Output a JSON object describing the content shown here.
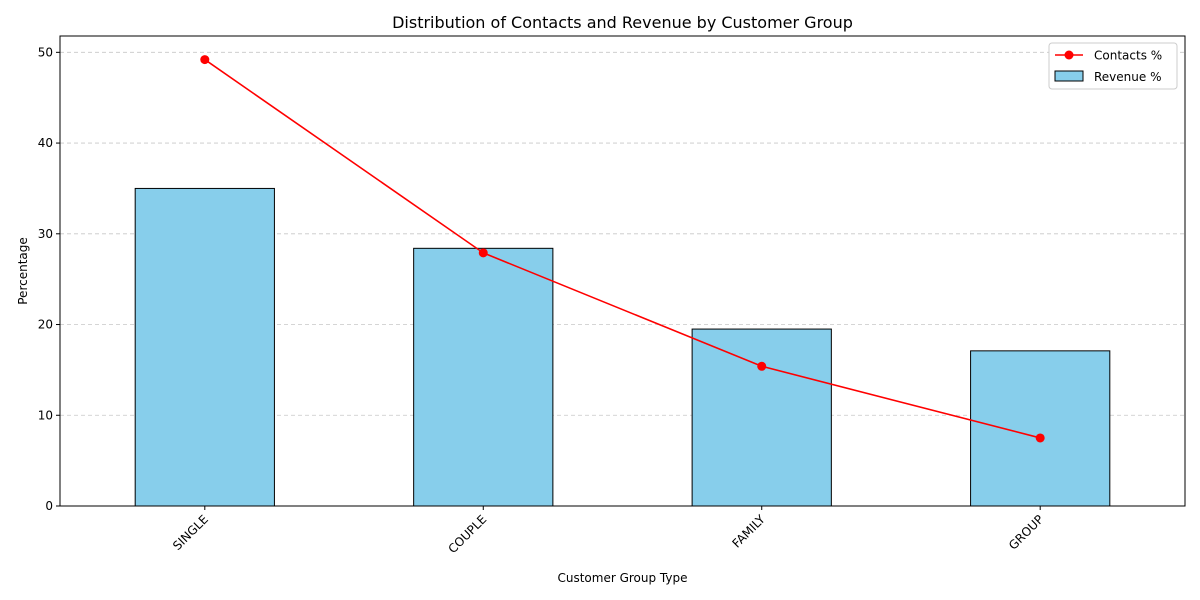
{
  "chart_data": {
    "type": "bar",
    "title": "Distribution of Contacts and Revenue by Customer Group",
    "xlabel": "Customer Group Type",
    "ylabel": "Percentage",
    "categories": [
      "SINGLE",
      "COUPLE",
      "FAMILY",
      "GROUP"
    ],
    "ylim": [
      0,
      51.8
    ],
    "yticks": [
      0,
      10,
      20,
      30,
      40,
      50
    ],
    "grid": "y-dashed",
    "legend_position": "top-right",
    "series": [
      {
        "name": "Contacts %",
        "type": "line",
        "color": "#ff0000",
        "values": [
          49.2,
          27.9,
          15.4,
          7.5
        ]
      },
      {
        "name": "Revenue %",
        "type": "bar",
        "color": "#87ceeb",
        "edge_color": "#000000",
        "values": [
          35.0,
          28.4,
          19.5,
          17.1
        ]
      }
    ]
  }
}
